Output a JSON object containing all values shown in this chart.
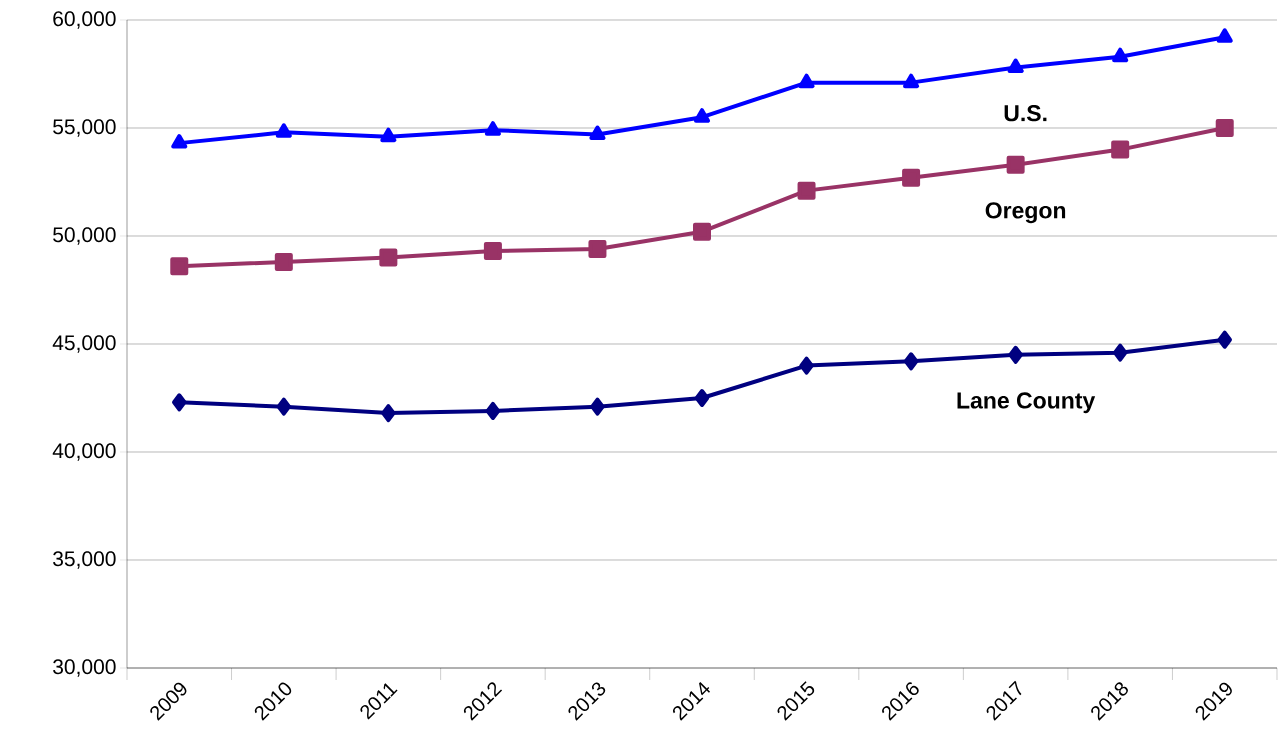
{
  "chart_data": {
    "type": "line",
    "categories": [
      "2009",
      "2010",
      "2011",
      "2012",
      "2013",
      "2014",
      "2015",
      "2016",
      "2017",
      "2018",
      "2019"
    ],
    "series": [
      {
        "name": "U.S.",
        "color": "#0000ff",
        "marker": "triangle",
        "values": [
          54300,
          54800,
          54600,
          54900,
          54700,
          55500,
          57100,
          57100,
          57800,
          58300,
          59200
        ]
      },
      {
        "name": "Oregon",
        "color": "#993366",
        "marker": "square",
        "values": [
          48600,
          48800,
          49000,
          49300,
          49400,
          50200,
          52100,
          52700,
          53300,
          54000,
          55000
        ]
      },
      {
        "name": "Lane County",
        "color": "#000080",
        "marker": "diamond",
        "values": [
          42300,
          42100,
          41800,
          41900,
          42100,
          42500,
          44000,
          44200,
          44500,
          44600,
          45200
        ]
      }
    ],
    "ylim": [
      30000,
      60000
    ],
    "yticks": [
      {
        "value": 30000,
        "label": "30,000"
      },
      {
        "value": 35000,
        "label": "35,000"
      },
      {
        "value": 40000,
        "label": "40,000"
      },
      {
        "value": 45000,
        "label": "45,000"
      },
      {
        "value": 50000,
        "label": "50,000"
      },
      {
        "value": 55000,
        "label": "55,000"
      },
      {
        "value": 60000,
        "label": "60,000"
      }
    ],
    "grid": "y",
    "line_style": "solid"
  }
}
